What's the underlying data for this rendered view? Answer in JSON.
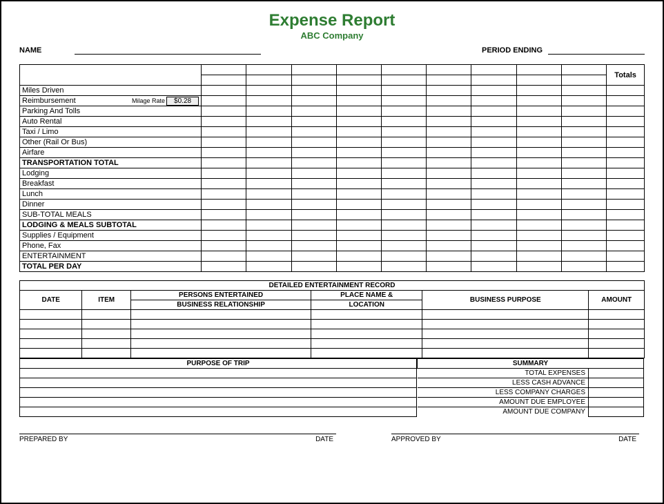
{
  "title": "Expense Report",
  "subtitle": "ABC Company",
  "header": {
    "name_label": "NAME",
    "period_label": "PERIOD ENDING"
  },
  "main": {
    "totals_header": "Totals",
    "milage_label": "Milage Rate",
    "milage_rate": "$0.28",
    "rows": [
      {
        "label": "Miles Driven",
        "bold": false
      },
      {
        "label": "Reimbursement",
        "bold": false,
        "milage": true
      },
      {
        "label": "Parking And Tolls",
        "bold": false
      },
      {
        "label": "Auto Rental",
        "bold": false
      },
      {
        "label": "Taxi / Limo",
        "bold": false
      },
      {
        "label": "Other (Rail Or Bus)",
        "bold": false
      },
      {
        "label": "Airfare",
        "bold": false
      },
      {
        "label": "TRANSPORTATION TOTAL",
        "bold": true,
        "section": true
      },
      {
        "label": "Lodging",
        "bold": false
      },
      {
        "label": "Breakfast",
        "bold": false
      },
      {
        "label": "Lunch",
        "bold": false
      },
      {
        "label": "Dinner",
        "bold": false
      },
      {
        "label": "SUB-TOTAL MEALS",
        "bold": false
      },
      {
        "label": "LODGING & MEALS SUBTOTAL",
        "bold": true,
        "section": true
      },
      {
        "label": "Supplies / Equipment",
        "bold": false
      },
      {
        "label": "Phone, Fax",
        "bold": false
      },
      {
        "label": "ENTERTAINMENT",
        "bold": false
      },
      {
        "label": "TOTAL PER DAY",
        "bold": true,
        "section": true
      }
    ],
    "day_cols": 9
  },
  "entertainment": {
    "title": "DETAILED ENTERTAINMENT RECORD",
    "headers": {
      "date": "DATE",
      "item": "ITEM",
      "persons_l1": "PERSONS ENTERTAINED",
      "persons_l2": "BUSINESS RELATIONSHIP",
      "place_l1": "PLACE NAME &",
      "place_l2": "LOCATION",
      "purpose": "BUSINESS PURPOSE",
      "amount": "AMOUNT"
    },
    "blank_rows": 5
  },
  "purpose": {
    "header": "PURPOSE OF TRIP",
    "blank_rows": 5
  },
  "summary": {
    "header": "SUMMARY",
    "rows": [
      "TOTAL EXPENSES",
      "LESS CASH ADVANCE",
      "LESS COMPANY CHARGES",
      "AMOUNT DUE EMPLOYEE",
      "AMOUNT DUE COMPANY"
    ]
  },
  "signatures": {
    "prepared": "PREPARED BY",
    "date": "DATE",
    "approved": "APPROVED BY"
  },
  "style": {
    "accent_color": "#2e7d32",
    "border_color": "#000000",
    "milage_bg": "#eeeeee"
  }
}
